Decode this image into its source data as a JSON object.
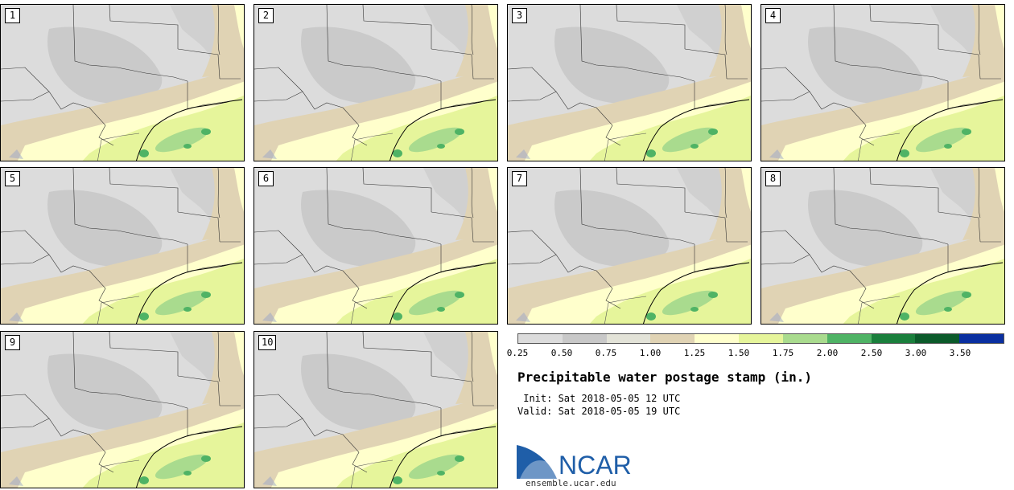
{
  "panels": [
    {
      "label": "1"
    },
    {
      "label": "2"
    },
    {
      "label": "3"
    },
    {
      "label": "4"
    },
    {
      "label": "5"
    },
    {
      "label": "6"
    },
    {
      "label": "7"
    },
    {
      "label": "8"
    },
    {
      "label": "9"
    },
    {
      "label": "10"
    }
  ],
  "legend": {
    "colors": [
      "#dcdcdc",
      "#c8c8c8",
      "#e3e3d8",
      "#e0d3b4",
      "#ffffcc",
      "#e6f59b",
      "#a9db8e",
      "#4fb365",
      "#1a7f3c",
      "#0b5a2a",
      "#0a2fa0"
    ],
    "ticks": [
      "0.25",
      "0.50",
      "0.75",
      "1.00",
      "1.25",
      "1.50",
      "1.75",
      "2.00",
      "2.50",
      "3.00",
      "3.50"
    ]
  },
  "title": "Precipitable water postage stamp (in.)",
  "init": " Init: Sat 2018-05-05 12 UTC",
  "valid": "Valid: Sat 2018-05-05 19 UTC",
  "logo": {
    "text": "NCAR",
    "url": "ensemble.ucar.edu",
    "color": "#1f5ea8"
  },
  "map_colors": {
    "gray_light": "#dcdcdc",
    "gray_dark": "#c8c8c8",
    "tan": "#e0d3b4",
    "cream": "#ffffcc",
    "green_light": "#e6f59b",
    "green_mid": "#a9db8e",
    "green_dark": "#4fb365"
  }
}
